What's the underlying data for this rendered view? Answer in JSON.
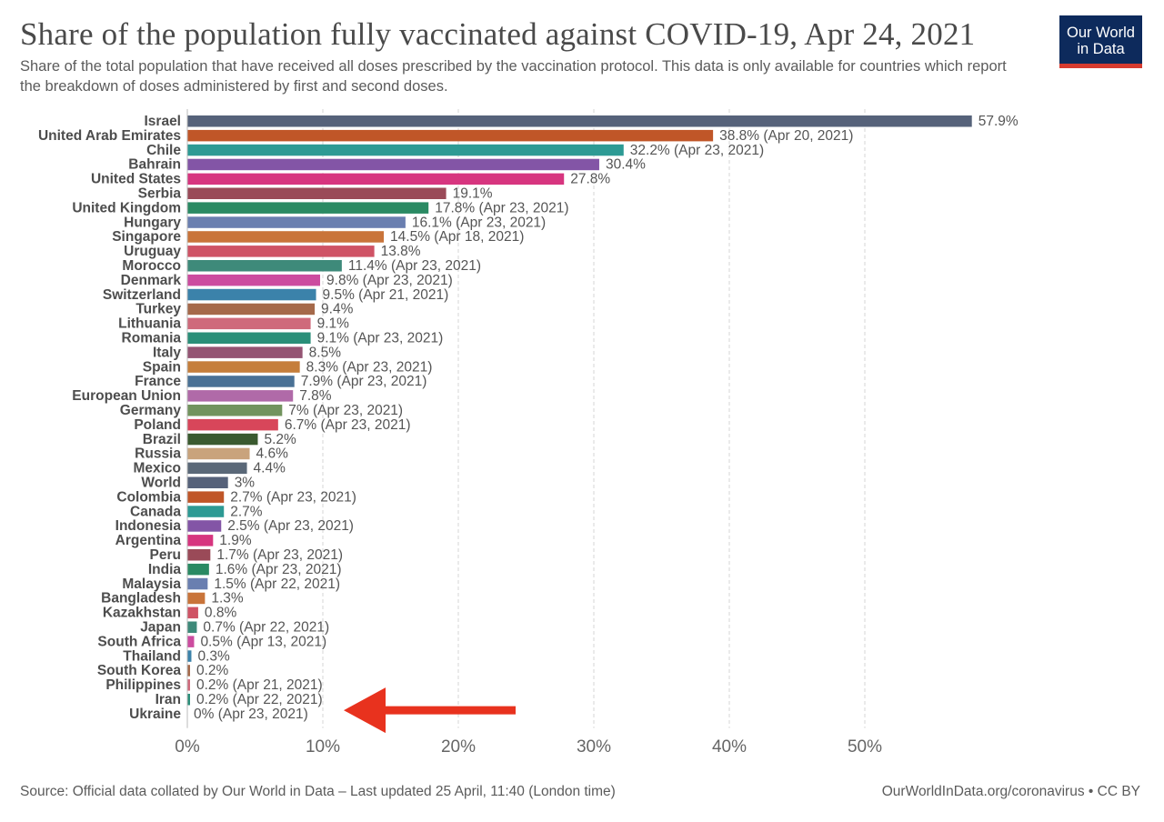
{
  "header": {
    "title": "Share of the population fully vaccinated against COVID-19, Apr 24, 2021",
    "subtitle": "Share of the total population that have received all doses prescribed by the vaccination protocol. This data is only available for countries which report the breakdown of doses administered by first and second doses."
  },
  "logo": {
    "line1": "Our World",
    "line2": "in Data",
    "bg_color": "#0d2a5c",
    "accent_color": "#d63b2f"
  },
  "footer": {
    "source": "Source: Official data collated by Our World in Data – Last updated 25 April, 11:40 (London time)",
    "credit": "OurWorldInData.org/coronavirus • CC BY"
  },
  "annotation": {
    "type": "arrow",
    "color": "#e8321e",
    "points_to": "Ukraine"
  },
  "chart_data": {
    "type": "bar",
    "orientation": "horizontal",
    "unit": "%",
    "xlim": [
      0,
      60
    ],
    "x_ticks": [
      "0%",
      "10%",
      "20%",
      "30%",
      "40%",
      "50%"
    ],
    "grid": true,
    "bars": [
      {
        "country": "Israel",
        "value": 57.9,
        "note": "",
        "color": "#56627a"
      },
      {
        "country": "United Arab Emirates",
        "value": 38.8,
        "note": "(Apr 20, 2021)",
        "color": "#c05628"
      },
      {
        "country": "Chile",
        "value": 32.2,
        "note": "(Apr 23, 2021)",
        "color": "#2d9a94"
      },
      {
        "country": "Bahrain",
        "value": 30.4,
        "note": "",
        "color": "#8355a6"
      },
      {
        "country": "United States",
        "value": 27.8,
        "note": "",
        "color": "#d7357f"
      },
      {
        "country": "Serbia",
        "value": 19.1,
        "note": "",
        "color": "#9a4a58"
      },
      {
        "country": "United Kingdom",
        "value": 17.8,
        "note": "(Apr 23, 2021)",
        "color": "#2a8a63"
      },
      {
        "country": "Hungary",
        "value": 16.1,
        "note": "(Apr 23, 2021)",
        "color": "#6a7fb0"
      },
      {
        "country": "Singapore",
        "value": 14.5,
        "note": "(Apr 18, 2021)",
        "color": "#c9743a"
      },
      {
        "country": "Uruguay",
        "value": 13.8,
        "note": "",
        "color": "#cf5365"
      },
      {
        "country": "Morocco",
        "value": 11.4,
        "note": "(Apr 23, 2021)",
        "color": "#3e8a7a"
      },
      {
        "country": "Denmark",
        "value": 9.8,
        "note": "(Apr 23, 2021)",
        "color": "#cc4c9f"
      },
      {
        "country": "Switzerland",
        "value": 9.5,
        "note": "(Apr 21, 2021)",
        "color": "#3b82aa"
      },
      {
        "country": "Turkey",
        "value": 9.4,
        "note": "",
        "color": "#a5694a"
      },
      {
        "country": "Lithuania",
        "value": 9.1,
        "note": "",
        "color": "#cf6a7b"
      },
      {
        "country": "Romania",
        "value": 9.1,
        "note": "(Apr 23, 2021)",
        "color": "#2a8f79"
      },
      {
        "country": "Italy",
        "value": 8.5,
        "note": "",
        "color": "#945473"
      },
      {
        "country": "Spain",
        "value": 8.3,
        "note": "(Apr 23, 2021)",
        "color": "#c57e3b"
      },
      {
        "country": "France",
        "value": 7.9,
        "note": "(Apr 23, 2021)",
        "color": "#4a7195"
      },
      {
        "country": "European Union",
        "value": 7.8,
        "note": "",
        "color": "#b06aa8"
      },
      {
        "country": "Germany",
        "value": 7.0,
        "label": "7%",
        "note": "(Apr 23, 2021)",
        "color": "#72945e"
      },
      {
        "country": "Poland",
        "value": 6.7,
        "note": "(Apr 23, 2021)",
        "color": "#d8465a"
      },
      {
        "country": "Brazil",
        "value": 5.2,
        "note": "",
        "color": "#3a5a2f"
      },
      {
        "country": "Russia",
        "value": 4.6,
        "note": "",
        "color": "#c9a37c"
      },
      {
        "country": "Mexico",
        "value": 4.4,
        "note": "",
        "color": "#5a6878"
      },
      {
        "country": "World",
        "value": 3.0,
        "label": "3%",
        "note": "",
        "color": "#56627a"
      },
      {
        "country": "Colombia",
        "value": 2.7,
        "note": "(Apr 23, 2021)",
        "color": "#c05628"
      },
      {
        "country": "Canada",
        "value": 2.7,
        "note": "",
        "color": "#2d9a94"
      },
      {
        "country": "Indonesia",
        "value": 2.5,
        "note": "(Apr 23, 2021)",
        "color": "#8355a6"
      },
      {
        "country": "Argentina",
        "value": 1.9,
        "note": "",
        "color": "#d7357f"
      },
      {
        "country": "Peru",
        "value": 1.7,
        "note": "(Apr 23, 2021)",
        "color": "#9a4a58"
      },
      {
        "country": "India",
        "value": 1.6,
        "note": "(Apr 23, 2021)",
        "color": "#2a8a63"
      },
      {
        "country": "Malaysia",
        "value": 1.5,
        "note": "(Apr 22, 2021)",
        "color": "#6a7fb0"
      },
      {
        "country": "Bangladesh",
        "value": 1.3,
        "note": "",
        "color": "#c9743a"
      },
      {
        "country": "Kazakhstan",
        "value": 0.8,
        "note": "",
        "color": "#cf5365"
      },
      {
        "country": "Japan",
        "value": 0.7,
        "note": "(Apr 22, 2021)",
        "color": "#3e8a7a"
      },
      {
        "country": "South Africa",
        "value": 0.5,
        "note": "(Apr 13, 2021)",
        "color": "#cc4c9f"
      },
      {
        "country": "Thailand",
        "value": 0.3,
        "note": "",
        "color": "#3b82aa"
      },
      {
        "country": "South Korea",
        "value": 0.2,
        "note": "",
        "color": "#a5694a"
      },
      {
        "country": "Philippines",
        "value": 0.2,
        "note": "(Apr 21, 2021)",
        "color": "#cf6a7b"
      },
      {
        "country": "Iran",
        "value": 0.2,
        "note": "(Apr 22, 2021)",
        "color": "#2a8f79"
      },
      {
        "country": "Ukraine",
        "value": 0.0,
        "label": "0%",
        "note": "(Apr 23, 2021)",
        "color": "#945473"
      }
    ]
  }
}
